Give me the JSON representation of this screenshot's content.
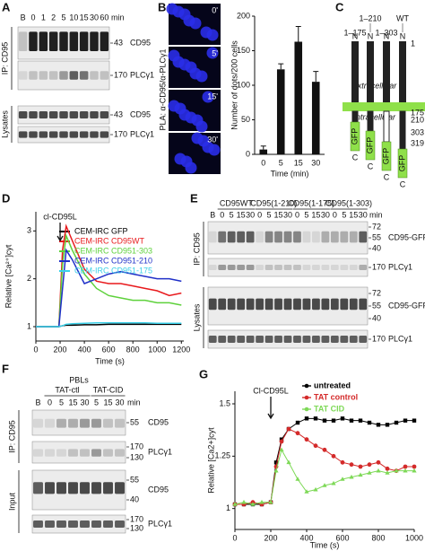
{
  "panel_A": {
    "label": "A",
    "lanes": [
      "B",
      "0",
      "1",
      "2",
      "5",
      "10",
      "15",
      "30",
      "60"
    ],
    "unit": "min",
    "groups": [
      "IP: CD95",
      "Lysates"
    ],
    "blots": [
      {
        "name": "CD95",
        "markers": [
          "43"
        ]
      },
      {
        "name": "PLCγ1",
        "markers": [
          "170"
        ]
      },
      {
        "name": "CD95",
        "markers": [
          "43"
        ]
      },
      {
        "name": "PLCγ1",
        "markers": [
          "170"
        ]
      }
    ]
  },
  "panel_B_images": {
    "label": "B",
    "times": [
      "0'",
      "5'",
      "15'",
      "30'"
    ],
    "side_label": "PLA: α-CD95/α-PLCγ1"
  },
  "panel_C": {
    "label": "C",
    "constructs": [
      "1–175",
      "1–210",
      "1–303",
      "WT"
    ],
    "n_terminus": "N",
    "c_terminus": "C",
    "start": "1",
    "regions": [
      "extracellular",
      "intracellular"
    ],
    "positions": [
      "175",
      "210",
      "303",
      "319"
    ],
    "tag": "GFP"
  },
  "panel_E": {
    "label": "E",
    "constructs": [
      "CD95WT",
      "CD95(1-210)",
      "CD95(1-175)",
      "CD95(1-303)"
    ],
    "lanes": [
      "B",
      "0",
      "5",
      "15",
      "30",
      "0",
      "5",
      "15",
      "30",
      "0",
      "5",
      "15",
      "30",
      "0",
      "5",
      "15",
      "30"
    ],
    "unit": "min",
    "groups": [
      "IP: CD95",
      "Lysates"
    ],
    "blots": [
      {
        "name": "CD95-GFP",
        "markers": [
          "72",
          "55",
          "40"
        ]
      },
      {
        "name": "PLCγ1",
        "markers": [
          "170"
        ]
      },
      {
        "name": "CD95-GFP",
        "markers": [
          "72",
          "55",
          "40"
        ]
      },
      {
        "name": "PLCγ1",
        "markers": [
          "170"
        ]
      }
    ]
  },
  "panel_F": {
    "label": "F",
    "title": "PBLs",
    "treatments": [
      "TAT-ctl",
      "TAT-CID"
    ],
    "lanes": [
      "B",
      "0",
      "5",
      "15",
      "30",
      "5",
      "15",
      "30"
    ],
    "unit": "min",
    "groups": [
      "IP: CD95",
      "Input"
    ],
    "blots": [
      {
        "name": "CD95",
        "markers": [
          "55"
        ]
      },
      {
        "name": "PLCγ1",
        "markers": [
          "170",
          "130"
        ]
      },
      {
        "name": "CD95",
        "markers": [
          "55",
          "40"
        ]
      },
      {
        "name": "PLCγ1",
        "markers": [
          "170",
          "130"
        ]
      }
    ]
  },
  "chart_data": [
    {
      "type": "bar",
      "ylabel": "Number of dots/200 cells",
      "xlabel": "Time (min)",
      "categories": [
        "0",
        "5",
        "15",
        "30"
      ],
      "values": [
        7,
        123,
        163,
        105
      ],
      "errors": [
        5,
        8,
        22,
        15
      ],
      "color": "#111111",
      "ylim": [
        0,
        200
      ],
      "yticks": [
        0,
        50,
        100,
        150,
        200
      ]
    },
    {
      "type": "line",
      "panel_label": "D",
      "annotation": "cl-CD95L",
      "ylabel": "Relative [Ca²⁺]cyt",
      "xlabel": "Time (s)",
      "x": [
        0,
        100,
        190,
        220,
        250,
        300,
        400,
        500,
        600,
        700,
        800,
        900,
        1000,
        1100,
        1200
      ],
      "series": [
        {
          "name": "CEM-IRC GFP",
          "color": "#000000",
          "values": [
            1,
            1,
            1,
            1.02,
            1.03,
            1.03,
            1.04,
            1.04,
            1.05,
            1.05,
            1.05,
            1.05,
            1.05,
            1.05,
            1.05
          ]
        },
        {
          "name": "CEM-IRC CD95WT",
          "color": "#e8191c",
          "values": [
            1,
            1,
            1,
            2.6,
            3.1,
            2.8,
            2.2,
            1.95,
            1.9,
            1.9,
            1.85,
            1.8,
            1.75,
            1.65,
            1.7
          ]
        },
        {
          "name": "CEM-IRC CD951-303",
          "color": "#5ed13b",
          "values": [
            1,
            1,
            1,
            2.3,
            2.9,
            2.6,
            2.1,
            1.8,
            1.65,
            1.6,
            1.55,
            1.55,
            1.5,
            1.5,
            1.45
          ]
        },
        {
          "name": "CEM-IRC CD951-210",
          "color": "#2030c8",
          "values": [
            1,
            1,
            1,
            1.8,
            2.6,
            2.4,
            1.9,
            2.0,
            2.1,
            2.15,
            2.1,
            2.05,
            2.0,
            2.0,
            1.95
          ]
        },
        {
          "name": "CEM-IRC CD951-175",
          "color": "#3ad0e8",
          "values": [
            1,
            1,
            1,
            1.02,
            1.05,
            1.06,
            1.07,
            1.08,
            1.08,
            1.08,
            1.08,
            1.08,
            1.07,
            1.07,
            1.07
          ]
        }
      ],
      "xlim": [
        0,
        1220
      ],
      "xticks": [
        0,
        200,
        400,
        600,
        800,
        1000,
        1200
      ],
      "ylim": [
        0.7,
        3.4
      ],
      "yticks": [
        1,
        2,
        3
      ]
    },
    {
      "type": "line",
      "panel_label": "G",
      "annotation": "Cl-CD95L",
      "ylabel": "Relative [Ca2+]cyt",
      "xlabel": "Time (s)",
      "x": [
        0,
        50,
        100,
        150,
        200,
        230,
        260,
        300,
        350,
        400,
        450,
        500,
        550,
        600,
        650,
        700,
        750,
        800,
        850,
        900,
        950,
        1000
      ],
      "series": [
        {
          "name": "untreated",
          "color": "#000000",
          "marker": "square",
          "values": [
            1.02,
            1.02,
            1.02,
            1.02,
            1.03,
            1.22,
            1.33,
            1.38,
            1.41,
            1.43,
            1.43,
            1.42,
            1.42,
            1.43,
            1.42,
            1.42,
            1.41,
            1.4,
            1.4,
            1.41,
            1.42,
            1.42
          ]
        },
        {
          "name": "TAT control",
          "color": "#d42a2a",
          "marker": "circle",
          "values": [
            1.02,
            1.02,
            1.03,
            1.02,
            1.03,
            1.2,
            1.32,
            1.38,
            1.36,
            1.33,
            1.3,
            1.28,
            1.25,
            1.22,
            1.21,
            1.2,
            1.21,
            1.22,
            1.19,
            1.18,
            1.2,
            1.2
          ]
        },
        {
          "name": "TAT CID",
          "color": "#7ed957",
          "marker": "triangle",
          "values": [
            1.02,
            1.03,
            1.02,
            1.03,
            1.03,
            1.18,
            1.28,
            1.22,
            1.14,
            1.08,
            1.09,
            1.11,
            1.12,
            1.14,
            1.15,
            1.16,
            1.17,
            1.18,
            1.17,
            1.18,
            1.18,
            1.18
          ]
        }
      ],
      "xlim": [
        0,
        1000
      ],
      "xticks": [
        0,
        200,
        400,
        600,
        800,
        1000
      ],
      "ylim": [
        0.9,
        1.56
      ],
      "yticks": [
        1,
        1.25,
        1.5
      ]
    }
  ]
}
